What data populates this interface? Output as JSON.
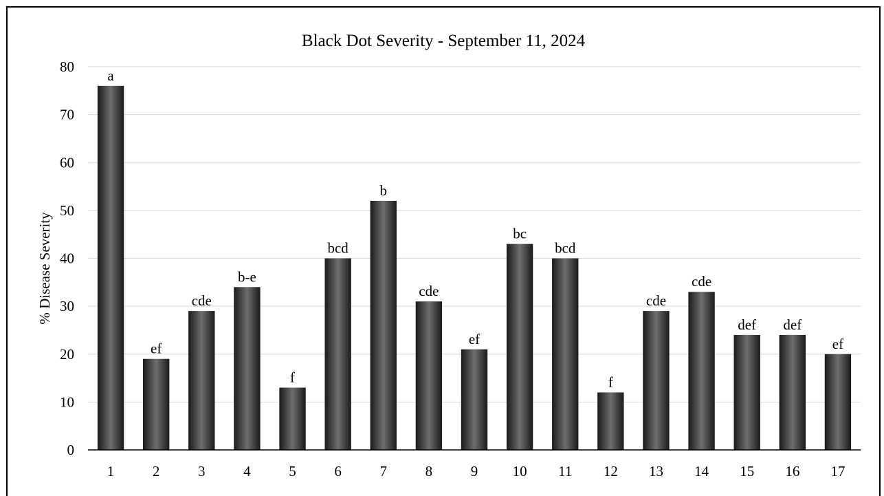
{
  "chart_data": {
    "type": "bar",
    "title": "Black Dot Severity - September 11, 2024",
    "xlabel": "",
    "ylabel": "% Disease Severity",
    "ylim": [
      0,
      80
    ],
    "yticks": [
      0,
      10,
      20,
      30,
      40,
      50,
      60,
      70,
      80
    ],
    "grid": true,
    "categories": [
      "1",
      "2",
      "3",
      "4",
      "5",
      "6",
      "7",
      "8",
      "9",
      "10",
      "11",
      "12",
      "13",
      "14",
      "15",
      "16",
      "17"
    ],
    "values": [
      76,
      19,
      29,
      34,
      13,
      40,
      52,
      31,
      21,
      43,
      40,
      12,
      29,
      33,
      24,
      24,
      20
    ],
    "data_labels": [
      "a",
      "ef",
      "cde",
      "b-e",
      "f",
      "bcd",
      "b",
      "cde",
      "ef",
      "bc",
      "bcd",
      "f",
      "cde",
      "cde",
      "def",
      "def",
      "ef"
    ],
    "colors": {
      "bar_edge": "#1a1a1a",
      "bar_center": "#6e6e6e",
      "grid": "#d9d9d9",
      "axis": "#000000"
    }
  }
}
